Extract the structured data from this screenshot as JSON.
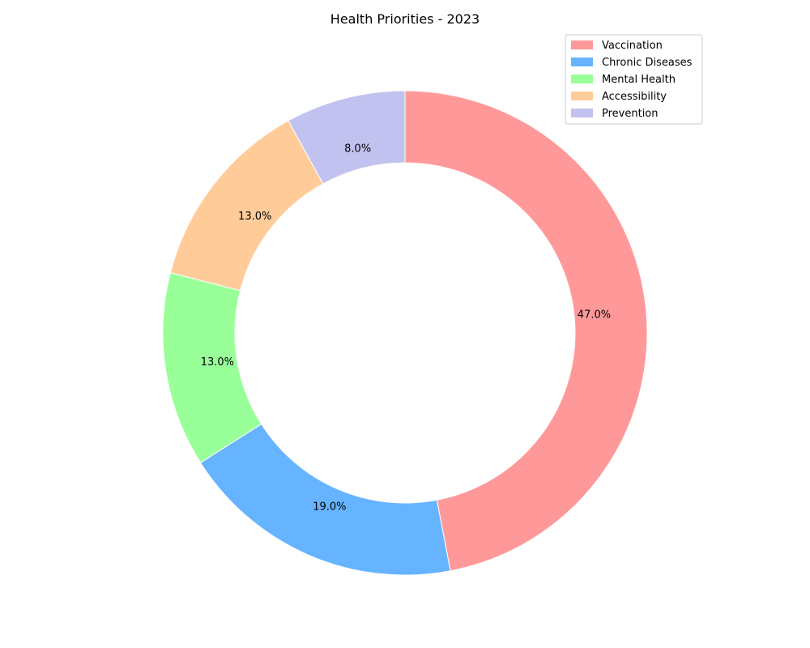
{
  "chart_data": {
    "type": "pie",
    "variant": "donut",
    "title": "Health Priorities - 2023",
    "categories": [
      "Vaccination",
      "Chronic Diseases",
      "Mental Health",
      "Accessibility",
      "Prevention"
    ],
    "values": [
      47.0,
      19.0,
      13.0,
      13.0,
      8.0
    ],
    "labels": [
      "47.0%",
      "19.0%",
      "13.0%",
      "13.0%",
      "8.0%"
    ],
    "colors": [
      "#ff9999",
      "#66b3ff",
      "#99ff99",
      "#ffcc99",
      "#c2c2f0"
    ],
    "start_angle": "top (90°), clockwise",
    "legend": {
      "placement": "top-right",
      "entries": [
        "Vaccination",
        "Chronic Diseases",
        "Mental Health",
        "Accessibility",
        "Prevention"
      ]
    }
  }
}
